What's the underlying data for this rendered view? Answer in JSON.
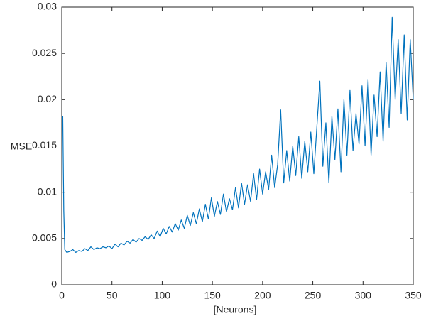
{
  "chart_data": {
    "type": "line",
    "xlabel": "[Neurons]",
    "ylabel": "MSE",
    "xlim": [
      0,
      350
    ],
    "xticks": [
      0,
      50,
      100,
      150,
      200,
      250,
      300,
      350
    ],
    "ylim": [
      0,
      0.03
    ],
    "yticks": [
      0,
      0.005,
      0.01,
      0.015,
      0.02,
      0.025,
      0.03
    ],
    "color": "#0072bd",
    "grid": false,
    "x": [
      1,
      2,
      3,
      5,
      8,
      11,
      14,
      17,
      20,
      23,
      26,
      29,
      32,
      35,
      38,
      41,
      44,
      47,
      50,
      53,
      56,
      59,
      62,
      65,
      68,
      71,
      74,
      77,
      80,
      83,
      86,
      89,
      92,
      95,
      98,
      101,
      104,
      107,
      110,
      113,
      116,
      119,
      122,
      125,
      128,
      131,
      134,
      137,
      140,
      143,
      146,
      149,
      152,
      155,
      158,
      161,
      164,
      167,
      170,
      173,
      176,
      179,
      182,
      185,
      188,
      191,
      194,
      197,
      200,
      203,
      206,
      209,
      212,
      215,
      218,
      221,
      224,
      227,
      230,
      233,
      236,
      239,
      242,
      245,
      248,
      251,
      254,
      257,
      260,
      263,
      266,
      269,
      272,
      275,
      278,
      281,
      284,
      287,
      290,
      293,
      296,
      299,
      302,
      305,
      308,
      311,
      314,
      317,
      320,
      323,
      326,
      329,
      332,
      335,
      338,
      341,
      344,
      347,
      350
    ],
    "values": [
      0.0182,
      0.008,
      0.0038,
      0.0035,
      0.0036,
      0.0038,
      0.0035,
      0.0037,
      0.0036,
      0.0039,
      0.0037,
      0.0041,
      0.0038,
      0.004,
      0.0039,
      0.0041,
      0.004,
      0.0042,
      0.0039,
      0.0044,
      0.0041,
      0.0045,
      0.0043,
      0.0047,
      0.0045,
      0.0049,
      0.0046,
      0.005,
      0.0048,
      0.0052,
      0.0049,
      0.0054,
      0.005,
      0.0058,
      0.0052,
      0.0061,
      0.0055,
      0.0063,
      0.0057,
      0.0066,
      0.0059,
      0.007,
      0.0061,
      0.0075,
      0.0064,
      0.0078,
      0.0066,
      0.0082,
      0.0068,
      0.0087,
      0.0071,
      0.0094,
      0.0074,
      0.009,
      0.0076,
      0.0098,
      0.0079,
      0.0093,
      0.0081,
      0.0105,
      0.0083,
      0.011,
      0.0087,
      0.0108,
      0.009,
      0.012,
      0.0092,
      0.0125,
      0.0098,
      0.0122,
      0.0103,
      0.014,
      0.0105,
      0.013,
      0.0189,
      0.011,
      0.0145,
      0.0112,
      0.015,
      0.0118,
      0.016,
      0.0115,
      0.0155,
      0.0122,
      0.0165,
      0.012,
      0.017,
      0.022,
      0.0128,
      0.0175,
      0.011,
      0.0182,
      0.0135,
      0.019,
      0.0122,
      0.02,
      0.014,
      0.021,
      0.0145,
      0.0185,
      0.0152,
      0.0215,
      0.015,
      0.0222,
      0.014,
      0.0205,
      0.016,
      0.023,
      0.0155,
      0.024,
      0.017,
      0.0289,
      0.02,
      0.0265,
      0.0185,
      0.027,
      0.0178,
      0.0265,
      0.02
    ]
  }
}
